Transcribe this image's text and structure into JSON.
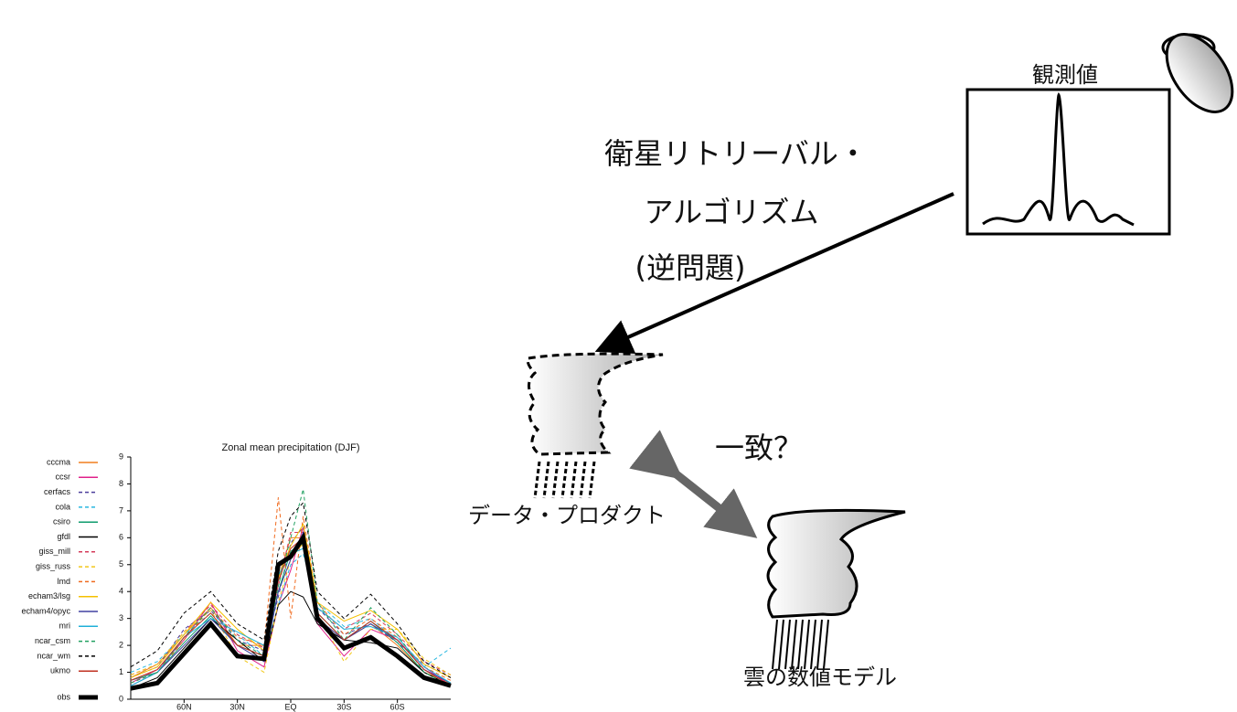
{
  "diagram": {
    "observation_label": "観測値",
    "retrieval_line1": "衛星リトリーバル・",
    "retrieval_line2": "アルゴリズム",
    "retrieval_line3": "(逆問題)",
    "match_label": "一致？",
    "data_product_label": "データ・プロダクト",
    "model_label": "雲の数値モデル"
  },
  "chart_data": {
    "type": "line",
    "title": "Zonal mean precipitation (DJF)",
    "x": [
      90,
      75,
      60,
      45,
      30,
      15,
      7,
      0,
      -7,
      -15,
      -30,
      -45,
      -60,
      -75,
      -90
    ],
    "xlim": [
      90,
      -90
    ],
    "xticks": [
      {
        "value": 60,
        "label": "60N"
      },
      {
        "value": 30,
        "label": "30N"
      },
      {
        "value": 0,
        "label": "EQ"
      },
      {
        "value": -30,
        "label": "30S"
      },
      {
        "value": -60,
        "label": "60S"
      }
    ],
    "ylim": [
      0,
      9
    ],
    "yticks": [
      0,
      1,
      2,
      3,
      4,
      5,
      6,
      7,
      8,
      9
    ],
    "series": [
      {
        "name": "cccma",
        "color": "#f07f1e",
        "dash": false,
        "values": [
          0.8,
          1.3,
          2.4,
          3.4,
          2.0,
          2.0,
          4.5,
          6.0,
          6.0,
          3.0,
          2.2,
          2.8,
          2.0,
          1.0,
          0.6
        ]
      },
      {
        "name": "ccsr",
        "color": "#e0218a",
        "dash": false,
        "values": [
          0.6,
          1.1,
          2.2,
          3.6,
          1.8,
          1.2,
          3.5,
          4.8,
          6.4,
          2.8,
          1.6,
          2.6,
          2.2,
          1.2,
          0.5
        ]
      },
      {
        "name": "cerfacs",
        "color": "#4b3e9c",
        "dash": true,
        "values": [
          0.8,
          1.2,
          2.6,
          3.3,
          2.2,
          1.8,
          3.8,
          5.8,
          6.4,
          3.4,
          2.4,
          2.8,
          2.1,
          1.3,
          0.8
        ]
      },
      {
        "name": "cola",
        "color": "#29b8e0",
        "dash": true,
        "values": [
          1.0,
          1.4,
          2.4,
          3.2,
          2.4,
          1.6,
          3.5,
          5.0,
          5.4,
          3.6,
          2.7,
          3.0,
          2.2,
          1.2,
          1.9
        ]
      },
      {
        "name": "csiro",
        "color": "#0e9b6c",
        "dash": false,
        "values": [
          0.7,
          1.0,
          2.1,
          3.1,
          2.0,
          1.6,
          4.0,
          5.5,
          5.8,
          3.2,
          2.2,
          2.9,
          2.1,
          1.0,
          0.5
        ]
      },
      {
        "name": "gfdl",
        "color": "#000000",
        "dash": false,
        "values": [
          0.4,
          0.8,
          1.9,
          3.0,
          2.2,
          1.4,
          3.5,
          4.0,
          3.8,
          2.8,
          2.2,
          2.1,
          1.9,
          1.0,
          0.5
        ]
      },
      {
        "name": "giss_mill",
        "color": "#d43a5a",
        "dash": true,
        "values": [
          0.9,
          1.3,
          2.5,
          3.5,
          2.4,
          1.9,
          4.2,
          6.2,
          6.2,
          3.4,
          2.6,
          3.2,
          2.4,
          1.4,
          0.9
        ]
      },
      {
        "name": "giss_russ",
        "color": "#f2c81a",
        "dash": true,
        "values": [
          0.9,
          1.3,
          2.5,
          3.3,
          1.6,
          1.0,
          3.6,
          5.2,
          5.8,
          3.2,
          1.4,
          2.6,
          2.6,
          1.5,
          0.9
        ]
      },
      {
        "name": "lmd",
        "color": "#f06a1e",
        "dash": true,
        "values": [
          0.6,
          1.0,
          2.2,
          3.4,
          2.3,
          2.0,
          7.5,
          3.0,
          6.8,
          3.6,
          2.4,
          3.0,
          2.3,
          1.2,
          0.7
        ]
      },
      {
        "name": "echam3/lsg",
        "color": "#f5c000",
        "dash": false,
        "values": [
          0.8,
          1.2,
          2.4,
          3.6,
          2.6,
          1.8,
          4.5,
          5.7,
          6.5,
          3.6,
          2.9,
          3.3,
          2.6,
          1.3,
          0.8
        ]
      },
      {
        "name": "echam4/opyc",
        "color": "#4040a0",
        "dash": false,
        "values": [
          0.5,
          1.0,
          2.0,
          3.0,
          2.0,
          1.4,
          4.0,
          5.2,
          6.2,
          3.0,
          2.2,
          2.8,
          2.2,
          1.1,
          0.6
        ]
      },
      {
        "name": "mri",
        "color": "#20b0d8",
        "dash": false,
        "values": [
          0.5,
          1.0,
          2.3,
          3.0,
          2.5,
          2.0,
          4.6,
          5.4,
          5.6,
          3.4,
          2.6,
          2.7,
          2.3,
          1.2,
          0.6
        ]
      },
      {
        "name": "ncar_csm",
        "color": "#20a060",
        "dash": true,
        "values": [
          0.6,
          1.0,
          2.3,
          3.4,
          2.2,
          1.6,
          4.2,
          6.0,
          7.8,
          3.6,
          2.2,
          3.4,
          2.4,
          1.0,
          0.5
        ]
      },
      {
        "name": "ncar_wm",
        "color": "#000000",
        "dash": true,
        "values": [
          1.2,
          1.8,
          3.2,
          4.0,
          2.8,
          2.2,
          5.5,
          6.8,
          7.3,
          4.0,
          3.0,
          3.9,
          2.8,
          1.4,
          0.8
        ]
      },
      {
        "name": "ukmo",
        "color": "#c03020",
        "dash": false,
        "values": [
          0.7,
          1.1,
          2.3,
          3.2,
          2.0,
          1.6,
          4.4,
          5.6,
          6.0,
          3.2,
          2.2,
          2.9,
          2.2,
          1.1,
          0.5
        ]
      },
      {
        "name": "obs",
        "color": "#000000",
        "dash": false,
        "line_width": 5,
        "values": [
          0.4,
          0.6,
          1.7,
          2.8,
          1.6,
          1.5,
          5.0,
          5.3,
          6.0,
          3.0,
          1.9,
          2.3,
          1.6,
          0.8,
          0.5
        ]
      }
    ]
  }
}
